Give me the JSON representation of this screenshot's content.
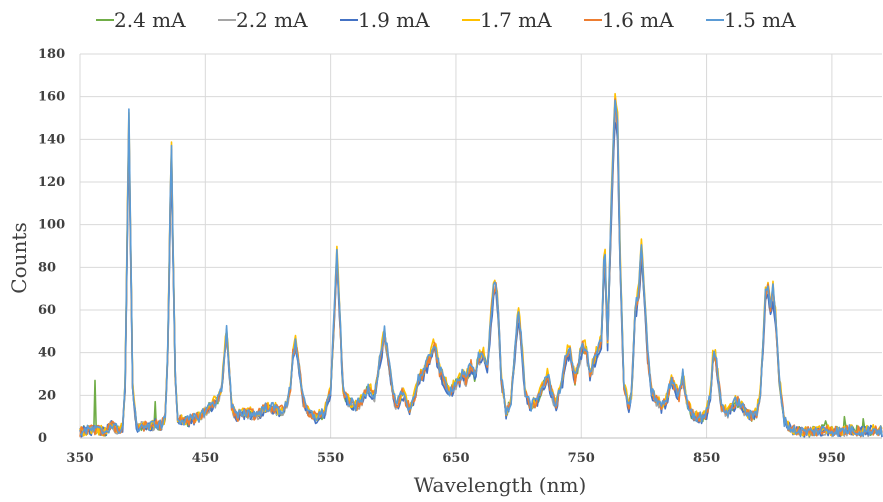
{
  "chart_data": {
    "type": "line",
    "title": "",
    "xlabel": "Wavelength (nm)",
    "ylabel": "Counts",
    "xlim": [
      350,
      990
    ],
    "ylim": [
      0,
      180
    ],
    "x_ticks": [
      350,
      450,
      550,
      650,
      750,
      850,
      950
    ],
    "y_ticks": [
      0,
      20,
      40,
      60,
      80,
      100,
      120,
      140,
      160,
      180
    ],
    "x_tick_labels": [
      "350",
      "450",
      "550",
      "650",
      "750",
      "850",
      "950"
    ],
    "y_tick_labels": [
      "0",
      "20",
      "40",
      "60",
      "80",
      "100",
      "120",
      "140",
      "160",
      "180"
    ],
    "grid": true,
    "legend_position": "top",
    "series": [
      {
        "name": "2.4 mA",
        "color": "#70AD47",
        "scale": 0.97
      },
      {
        "name": "2.2 mA",
        "color": "#A5A5A5",
        "scale": 0.95
      },
      {
        "name": "1.9 mA",
        "color": "#4472C4",
        "scale": 0.93
      },
      {
        "name": "1.7 mA",
        "color": "#FFC000",
        "scale": 1.02
      },
      {
        "name": "1.6 mA",
        "color": "#ED7D31",
        "scale": 0.98
      },
      {
        "name": "1.5 mA",
        "color": "#5B9BD5",
        "scale": 1.0
      }
    ],
    "profile": [
      [
        350,
        3
      ],
      [
        360,
        4
      ],
      [
        370,
        3
      ],
      [
        375,
        6
      ],
      [
        380,
        4
      ],
      [
        384,
        5
      ],
      [
        386,
        25
      ],
      [
        388,
        110
      ],
      [
        389,
        152
      ],
      [
        390,
        110
      ],
      [
        392,
        25
      ],
      [
        395,
        5
      ],
      [
        400,
        6
      ],
      [
        405,
        5
      ],
      [
        410,
        7
      ],
      [
        415,
        6
      ],
      [
        418,
        10
      ],
      [
        420,
        40
      ],
      [
        422,
        110
      ],
      [
        423,
        137
      ],
      [
        424,
        100
      ],
      [
        426,
        30
      ],
      [
        428,
        9
      ],
      [
        435,
        8
      ],
      [
        440,
        9
      ],
      [
        445,
        10
      ],
      [
        450,
        13
      ],
      [
        455,
        16
      ],
      [
        460,
        18
      ],
      [
        463,
        24
      ],
      [
        466,
        45
      ],
      [
        467,
        51
      ],
      [
        468,
        42
      ],
      [
        471,
        15
      ],
      [
        475,
        10
      ],
      [
        480,
        12
      ],
      [
        485,
        12
      ],
      [
        490,
        11
      ],
      [
        495,
        13
      ],
      [
        500,
        15
      ],
      [
        505,
        14
      ],
      [
        510,
        13
      ],
      [
        515,
        15
      ],
      [
        518,
        25
      ],
      [
        520,
        40
      ],
      [
        522,
        45
      ],
      [
        524,
        38
      ],
      [
        528,
        18
      ],
      [
        532,
        12
      ],
      [
        538,
        10
      ],
      [
        545,
        12
      ],
      [
        550,
        22
      ],
      [
        553,
        60
      ],
      [
        555,
        88
      ],
      [
        557,
        62
      ],
      [
        560,
        22
      ],
      [
        565,
        17
      ],
      [
        570,
        15
      ],
      [
        575,
        18
      ],
      [
        580,
        24
      ],
      [
        585,
        20
      ],
      [
        590,
        40
      ],
      [
        593,
        50
      ],
      [
        596,
        38
      ],
      [
        600,
        20
      ],
      [
        603,
        15
      ],
      [
        607,
        22
      ],
      [
        610,
        18
      ],
      [
        613,
        14
      ],
      [
        617,
        20
      ],
      [
        620,
        28
      ],
      [
        625,
        32
      ],
      [
        630,
        40
      ],
      [
        633,
        45
      ],
      [
        637,
        32
      ],
      [
        640,
        28
      ],
      [
        645,
        22
      ],
      [
        650,
        26
      ],
      [
        655,
        30
      ],
      [
        658,
        28
      ],
      [
        662,
        35
      ],
      [
        665,
        30
      ],
      [
        668,
        38
      ],
      [
        672,
        40
      ],
      [
        675,
        32
      ],
      [
        678,
        58
      ],
      [
        680,
        70
      ],
      [
        682,
        72
      ],
      [
        684,
        58
      ],
      [
        686,
        30
      ],
      [
        690,
        12
      ],
      [
        694,
        18
      ],
      [
        698,
        48
      ],
      [
        700,
        60
      ],
      [
        702,
        48
      ],
      [
        705,
        22
      ],
      [
        710,
        15
      ],
      [
        715,
        18
      ],
      [
        720,
        26
      ],
      [
        723,
        30
      ],
      [
        727,
        20
      ],
      [
        730,
        16
      ],
      [
        735,
        28
      ],
      [
        738,
        40
      ],
      [
        741,
        42
      ],
      [
        745,
        28
      ],
      [
        748,
        36
      ],
      [
        751,
        44
      ],
      [
        754,
        42
      ],
      [
        757,
        30
      ],
      [
        760,
        36
      ],
      [
        763,
        42
      ],
      [
        766,
        45
      ],
      [
        768,
        82
      ],
      [
        769,
        85
      ],
      [
        771,
        45
      ],
      [
        774,
        110
      ],
      [
        776,
        145
      ],
      [
        777,
        160
      ],
      [
        779,
        150
      ],
      [
        781,
        85
      ],
      [
        784,
        25
      ],
      [
        788,
        15
      ],
      [
        790,
        20
      ],
      [
        793,
        60
      ],
      [
        796,
        70
      ],
      [
        798,
        90
      ],
      [
        800,
        72
      ],
      [
        803,
        40
      ],
      [
        806,
        22
      ],
      [
        810,
        18
      ],
      [
        814,
        15
      ],
      [
        818,
        18
      ],
      [
        822,
        28
      ],
      [
        825,
        24
      ],
      [
        828,
        20
      ],
      [
        831,
        30
      ],
      [
        834,
        18
      ],
      [
        838,
        12
      ],
      [
        842,
        10
      ],
      [
        846,
        10
      ],
      [
        850,
        12
      ],
      [
        853,
        20
      ],
      [
        855,
        38
      ],
      [
        857,
        40
      ],
      [
        859,
        30
      ],
      [
        862,
        15
      ],
      [
        866,
        12
      ],
      [
        870,
        14
      ],
      [
        874,
        18
      ],
      [
        878,
        15
      ],
      [
        882,
        12
      ],
      [
        886,
        10
      ],
      [
        890,
        12
      ],
      [
        893,
        22
      ],
      [
        895,
        45
      ],
      [
        897,
        68
      ],
      [
        899,
        72
      ],
      [
        901,
        62
      ],
      [
        903,
        70
      ],
      [
        905,
        58
      ],
      [
        908,
        28
      ],
      [
        912,
        8
      ],
      [
        918,
        4
      ],
      [
        925,
        3
      ],
      [
        935,
        3
      ],
      [
        945,
        4
      ],
      [
        955,
        3
      ],
      [
        965,
        4
      ],
      [
        975,
        3
      ],
      [
        985,
        4
      ],
      [
        990,
        3
      ]
    ],
    "spikes": [
      [
        362,
        27
      ],
      [
        410,
        17
      ],
      [
        945,
        8
      ],
      [
        960,
        10
      ],
      [
        975,
        9
      ]
    ]
  }
}
